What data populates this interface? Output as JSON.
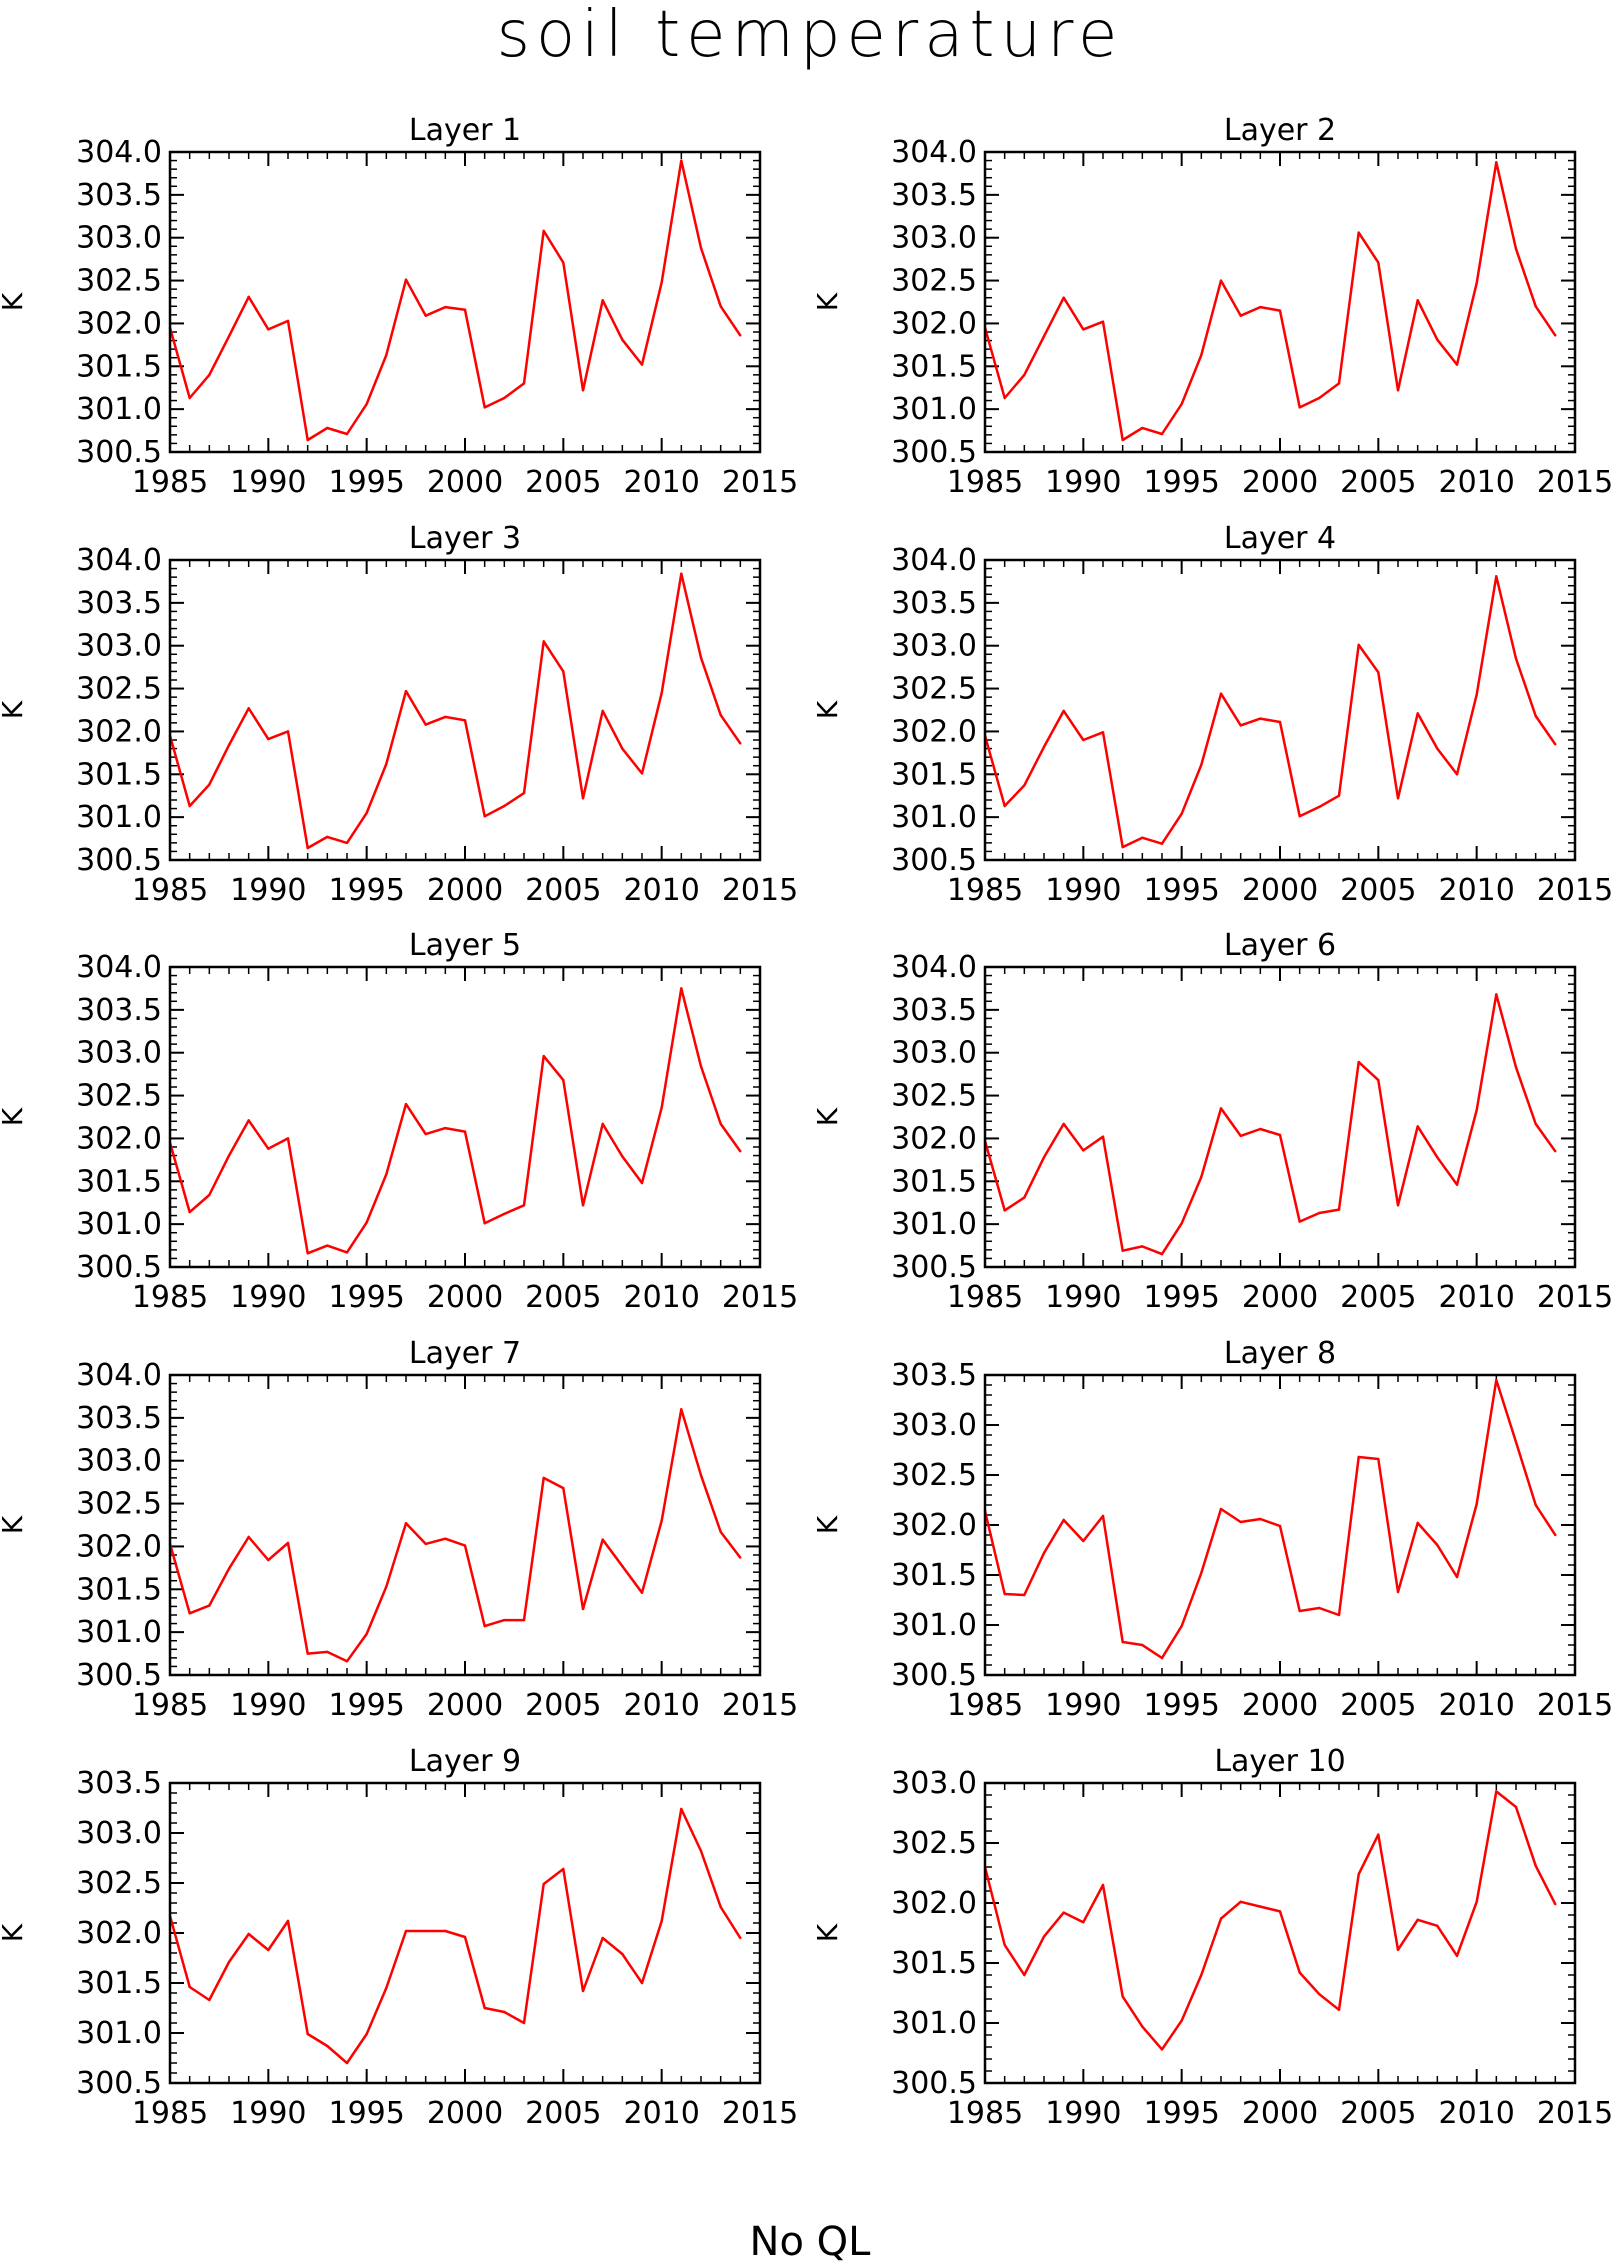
{
  "title": "soil temperature",
  "footer": "No QL",
  "colors": {
    "line": "#ff0000",
    "axis": "#000000",
    "background": "#ffffff"
  },
  "chart_data": [
    {
      "type": "line",
      "title": "Layer 1",
      "ylabel": "K",
      "xlim": [
        1985,
        2015
      ],
      "ylim": [
        300.5,
        304.0
      ],
      "xticks": [
        "1985",
        "1990",
        "1995",
        "2000",
        "2005",
        "2010",
        "2015"
      ],
      "yticks": [
        "300.5",
        "301.0",
        "301.5",
        "302.0",
        "302.5",
        "303.0",
        "303.5",
        "304.0"
      ],
      "x": [
        1985,
        1986,
        1987,
        1988,
        1989,
        1990,
        1991,
        1992,
        1993,
        1994,
        1995,
        1996,
        1997,
        1998,
        1999,
        2000,
        2001,
        2002,
        2003,
        2004,
        2005,
        2006,
        2007,
        2008,
        2009,
        2010,
        2011,
        2012,
        2013,
        2014
      ],
      "y": [
        301.95,
        301.13,
        301.4,
        301.85,
        302.31,
        301.93,
        302.03,
        300.64,
        300.78,
        300.71,
        301.06,
        301.63,
        302.51,
        302.09,
        302.19,
        302.16,
        301.02,
        301.13,
        301.3,
        303.08,
        302.71,
        301.22,
        302.27,
        301.81,
        301.52,
        302.48,
        303.9,
        302.88,
        302.2,
        301.86
      ]
    },
    {
      "type": "line",
      "title": "Layer 2",
      "ylabel": "K",
      "xlim": [
        1985,
        2015
      ],
      "ylim": [
        300.5,
        304.0
      ],
      "xticks": [
        "1985",
        "1990",
        "1995",
        "2000",
        "2005",
        "2010",
        "2015"
      ],
      "yticks": [
        "300.5",
        "301.0",
        "301.5",
        "302.0",
        "302.5",
        "303.0",
        "303.5",
        "304.0"
      ],
      "x": [
        1985,
        1986,
        1987,
        1988,
        1989,
        1990,
        1991,
        1992,
        1993,
        1994,
        1995,
        1996,
        1997,
        1998,
        1999,
        2000,
        2001,
        2002,
        2003,
        2004,
        2005,
        2006,
        2007,
        2008,
        2009,
        2010,
        2011,
        2012,
        2013,
        2014
      ],
      "y": [
        301.95,
        301.13,
        301.4,
        301.85,
        302.3,
        301.93,
        302.02,
        300.64,
        300.78,
        300.71,
        301.06,
        301.63,
        302.5,
        302.09,
        302.19,
        302.15,
        301.02,
        301.13,
        301.3,
        303.06,
        302.71,
        301.22,
        302.27,
        301.81,
        301.52,
        302.47,
        303.88,
        302.87,
        302.2,
        301.86
      ]
    },
    {
      "type": "line",
      "title": "Layer 3",
      "ylabel": "K",
      "xlim": [
        1985,
        2015
      ],
      "ylim": [
        300.5,
        304.0
      ],
      "xticks": [
        "1985",
        "1990",
        "1995",
        "2000",
        "2005",
        "2010",
        "2015"
      ],
      "yticks": [
        "300.5",
        "301.0",
        "301.5",
        "302.0",
        "302.5",
        "303.0",
        "303.5",
        "304.0"
      ],
      "x": [
        1985,
        1986,
        1987,
        1988,
        1989,
        1990,
        1991,
        1992,
        1993,
        1994,
        1995,
        1996,
        1997,
        1998,
        1999,
        2000,
        2001,
        2002,
        2003,
        2004,
        2005,
        2006,
        2007,
        2008,
        2009,
        2010,
        2011,
        2012,
        2013,
        2014
      ],
      "y": [
        301.95,
        301.13,
        301.38,
        301.84,
        302.27,
        301.91,
        302.0,
        300.64,
        300.77,
        300.7,
        301.05,
        301.62,
        302.47,
        302.08,
        302.17,
        302.13,
        301.01,
        301.13,
        301.28,
        303.05,
        302.7,
        301.22,
        302.24,
        301.8,
        301.51,
        302.45,
        303.84,
        302.86,
        302.19,
        301.86
      ]
    },
    {
      "type": "line",
      "title": "Layer 4",
      "ylabel": "K",
      "xlim": [
        1985,
        2015
      ],
      "ylim": [
        300.5,
        304.0
      ],
      "xticks": [
        "1985",
        "1990",
        "1995",
        "2000",
        "2005",
        "2010",
        "2015"
      ],
      "yticks": [
        "300.5",
        "301.0",
        "301.5",
        "302.0",
        "302.5",
        "303.0",
        "303.5",
        "304.0"
      ],
      "x": [
        1985,
        1986,
        1987,
        1988,
        1989,
        1990,
        1991,
        1992,
        1993,
        1994,
        1995,
        1996,
        1997,
        1998,
        1999,
        2000,
        2001,
        2002,
        2003,
        2004,
        2005,
        2006,
        2007,
        2008,
        2009,
        2010,
        2011,
        2012,
        2013,
        2014
      ],
      "y": [
        301.95,
        301.13,
        301.37,
        301.82,
        302.24,
        301.9,
        301.99,
        300.65,
        300.76,
        300.69,
        301.04,
        301.61,
        302.44,
        302.07,
        302.15,
        302.11,
        301.01,
        301.12,
        301.25,
        303.01,
        302.69,
        301.22,
        302.21,
        301.8,
        301.5,
        302.43,
        303.81,
        302.85,
        302.18,
        301.85
      ]
    },
    {
      "type": "line",
      "title": "Layer 5",
      "ylabel": "K",
      "xlim": [
        1985,
        2015
      ],
      "ylim": [
        300.5,
        304.0
      ],
      "xticks": [
        "1985",
        "1990",
        "1995",
        "2000",
        "2005",
        "2010",
        "2015"
      ],
      "yticks": [
        "300.5",
        "301.0",
        "301.5",
        "302.0",
        "302.5",
        "303.0",
        "303.5",
        "304.0"
      ],
      "x": [
        1985,
        1986,
        1987,
        1988,
        1989,
        1990,
        1991,
        1992,
        1993,
        1994,
        1995,
        1996,
        1997,
        1998,
        1999,
        2000,
        2001,
        2002,
        2003,
        2004,
        2005,
        2006,
        2007,
        2008,
        2009,
        2010,
        2011,
        2012,
        2013,
        2014
      ],
      "y": [
        301.95,
        301.14,
        301.34,
        301.8,
        302.21,
        301.88,
        302.0,
        300.66,
        300.75,
        300.67,
        301.02,
        301.58,
        302.4,
        302.05,
        302.12,
        302.08,
        301.01,
        301.12,
        301.22,
        302.96,
        302.68,
        301.22,
        302.17,
        301.79,
        301.48,
        302.36,
        303.75,
        302.84,
        302.17,
        301.85
      ]
    },
    {
      "type": "line",
      "title": "Layer 6",
      "ylabel": "K",
      "xlim": [
        1985,
        2015
      ],
      "ylim": [
        300.5,
        304.0
      ],
      "xticks": [
        "1985",
        "1990",
        "1995",
        "2000",
        "2005",
        "2010",
        "2015"
      ],
      "yticks": [
        "300.5",
        "301.0",
        "301.5",
        "302.0",
        "302.5",
        "303.0",
        "303.5",
        "304.0"
      ],
      "x": [
        1985,
        1986,
        1987,
        1988,
        1989,
        1990,
        1991,
        1992,
        1993,
        1994,
        1995,
        1996,
        1997,
        1998,
        1999,
        2000,
        2001,
        2002,
        2003,
        2004,
        2005,
        2006,
        2007,
        2008,
        2009,
        2010,
        2011,
        2012,
        2013,
        2014
      ],
      "y": [
        301.97,
        301.16,
        301.31,
        301.78,
        302.17,
        301.86,
        302.02,
        300.69,
        300.74,
        300.65,
        301.01,
        301.55,
        302.35,
        302.03,
        302.11,
        302.04,
        301.03,
        301.13,
        301.17,
        302.89,
        302.68,
        301.22,
        302.14,
        301.78,
        301.46,
        302.33,
        303.68,
        302.83,
        302.17,
        301.85
      ]
    },
    {
      "type": "line",
      "title": "Layer 7",
      "ylabel": "K",
      "xlim": [
        1985,
        2015
      ],
      "ylim": [
        300.5,
        304.0
      ],
      "xticks": [
        "1985",
        "1990",
        "1995",
        "2000",
        "2005",
        "2010",
        "2015"
      ],
      "yticks": [
        "300.5",
        "301.0",
        "301.5",
        "302.0",
        "302.5",
        "303.0",
        "303.5",
        "304.0"
      ],
      "x": [
        1985,
        1986,
        1987,
        1988,
        1989,
        1990,
        1991,
        1992,
        1993,
        1994,
        1995,
        1996,
        1997,
        1998,
        1999,
        2000,
        2001,
        2002,
        2003,
        2004,
        2005,
        2006,
        2007,
        2008,
        2009,
        2010,
        2011,
        2012,
        2013,
        2014
      ],
      "y": [
        302.03,
        301.22,
        301.31,
        301.74,
        302.11,
        301.84,
        302.04,
        300.75,
        300.77,
        300.66,
        300.98,
        301.53,
        302.27,
        302.03,
        302.09,
        302.01,
        301.07,
        301.14,
        301.14,
        302.8,
        302.68,
        301.27,
        302.08,
        301.77,
        301.46,
        302.3,
        303.6,
        302.83,
        302.17,
        301.87
      ]
    },
    {
      "type": "line",
      "title": "Layer 8",
      "ylabel": "K",
      "xlim": [
        1985,
        2015
      ],
      "ylim": [
        300.5,
        303.5
      ],
      "xticks": [
        "1985",
        "1990",
        "1995",
        "2000",
        "2005",
        "2010",
        "2015"
      ],
      "yticks": [
        "300.5",
        "301.0",
        "301.5",
        "302.0",
        "302.5",
        "303.0",
        "303.5"
      ],
      "x": [
        1985,
        1986,
        1987,
        1988,
        1989,
        1990,
        1991,
        1992,
        1993,
        1994,
        1995,
        1996,
        1997,
        1998,
        1999,
        2000,
        2001,
        2002,
        2003,
        2004,
        2005,
        2006,
        2007,
        2008,
        2009,
        2010,
        2011,
        2012,
        2013,
        2014
      ],
      "y": [
        302.14,
        301.31,
        301.3,
        301.72,
        302.05,
        301.84,
        302.09,
        300.83,
        300.8,
        300.67,
        300.99,
        301.52,
        302.16,
        302.03,
        302.06,
        301.99,
        301.14,
        301.17,
        301.1,
        302.68,
        302.66,
        301.33,
        302.02,
        301.8,
        301.48,
        302.21,
        303.45,
        302.83,
        302.2,
        301.9
      ]
    },
    {
      "type": "line",
      "title": "Layer 9",
      "ylabel": "K",
      "xlim": [
        1985,
        2015
      ],
      "ylim": [
        300.5,
        303.5
      ],
      "xticks": [
        "1985",
        "1990",
        "1995",
        "2000",
        "2005",
        "2010",
        "2015"
      ],
      "yticks": [
        "300.5",
        "301.0",
        "301.5",
        "302.0",
        "302.5",
        "303.0",
        "303.5"
      ],
      "x": [
        1985,
        1986,
        1987,
        1988,
        1989,
        1990,
        1991,
        1992,
        1993,
        1994,
        1995,
        1996,
        1997,
        1998,
        1999,
        2000,
        2001,
        2002,
        2003,
        2004,
        2005,
        2006,
        2007,
        2008,
        2009,
        2010,
        2011,
        2012,
        2013,
        2014
      ],
      "y": [
        302.17,
        301.46,
        301.33,
        301.71,
        301.99,
        301.83,
        302.12,
        300.99,
        300.87,
        300.7,
        300.99,
        301.45,
        302.02,
        302.02,
        302.02,
        301.96,
        301.25,
        301.21,
        301.1,
        302.49,
        302.64,
        301.42,
        301.95,
        301.79,
        301.5,
        302.12,
        303.24,
        302.82,
        302.26,
        301.95
      ]
    },
    {
      "type": "line",
      "title": "Layer 10",
      "ylabel": "K",
      "xlim": [
        1985,
        2015
      ],
      "ylim": [
        300.5,
        303.0
      ],
      "xticks": [
        "1985",
        "1990",
        "1995",
        "2000",
        "2005",
        "2010",
        "2015"
      ],
      "yticks": [
        "300.5",
        "301.0",
        "301.5",
        "302.0",
        "302.5",
        "303.0"
      ],
      "x": [
        1985,
        1986,
        1987,
        1988,
        1989,
        1990,
        1991,
        1992,
        1993,
        1994,
        1995,
        1996,
        1997,
        1998,
        1999,
        2000,
        2001,
        2002,
        2003,
        2004,
        2005,
        2006,
        2007,
        2008,
        2009,
        2010,
        2011,
        2012,
        2013,
        2014
      ],
      "y": [
        302.3,
        301.65,
        301.4,
        301.72,
        301.92,
        301.84,
        302.15,
        301.22,
        300.97,
        300.78,
        301.02,
        301.4,
        301.87,
        302.01,
        301.97,
        301.93,
        301.42,
        301.24,
        301.11,
        302.24,
        302.57,
        301.61,
        301.86,
        301.81,
        301.56,
        302.01,
        302.93,
        302.8,
        302.31,
        301.99
      ]
    }
  ]
}
